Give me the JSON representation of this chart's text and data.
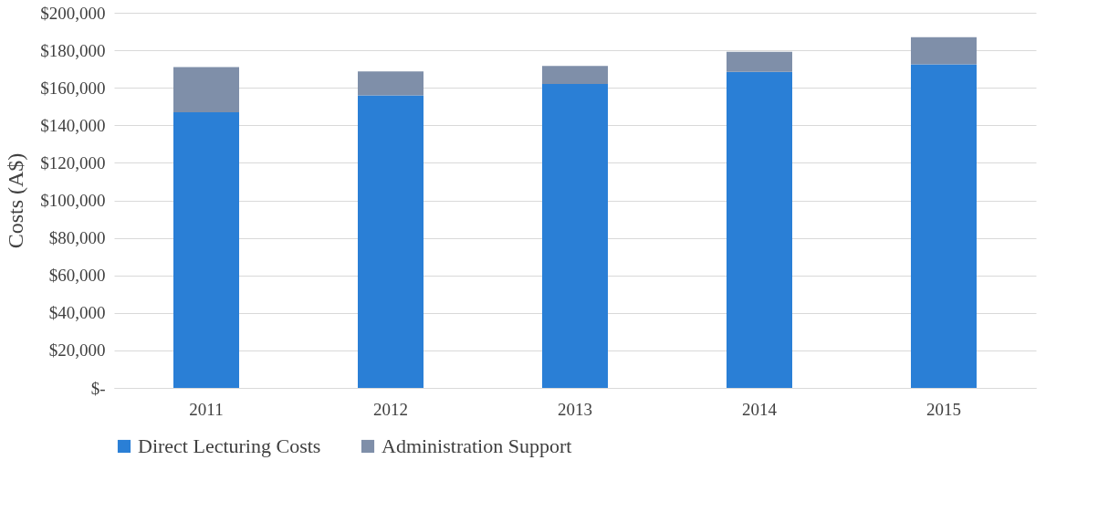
{
  "chart_data": {
    "type": "bar",
    "stacked": true,
    "ylabel": "Costs (A$)",
    "categories": [
      "2011",
      "2012",
      "2013",
      "2014",
      "2015"
    ],
    "series": [
      {
        "name": "Direct Lecturing Costs",
        "color": "#2a7fd6",
        "values": [
          147000,
          156000,
          162000,
          168500,
          172500
        ]
      },
      {
        "name": "Administration Support",
        "color": "#7f8fa9",
        "values": [
          24000,
          12700,
          9700,
          10700,
          14500
        ]
      }
    ],
    "ylim": [
      0,
      200000
    ],
    "yticks": [
      {
        "value": 0,
        "label": "$-"
      },
      {
        "value": 20000,
        "label": "$20,000"
      },
      {
        "value": 40000,
        "label": "$40,000"
      },
      {
        "value": 60000,
        "label": "$60,000"
      },
      {
        "value": 80000,
        "label": "$80,000"
      },
      {
        "value": 100000,
        "label": "$100,000"
      },
      {
        "value": 120000,
        "label": "$120,000"
      },
      {
        "value": 140000,
        "label": "$140,000"
      },
      {
        "value": 160000,
        "label": "$160,000"
      },
      {
        "value": 180000,
        "label": "$180,000"
      },
      {
        "value": 200000,
        "label": "$200,000"
      }
    ],
    "grid": "y",
    "legend": "bottom"
  }
}
